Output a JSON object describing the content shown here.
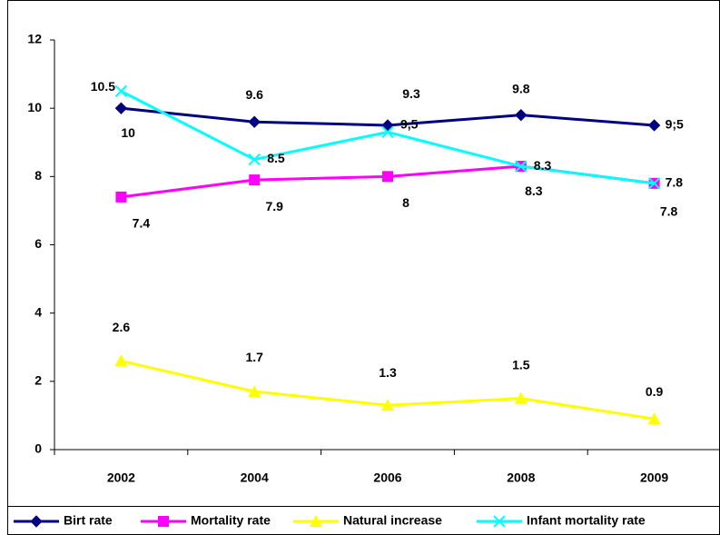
{
  "chart_data": {
    "type": "line",
    "categories": [
      "2002",
      "2004",
      "2006",
      "2008",
      "2009"
    ],
    "series": [
      {
        "name": "Birt rate",
        "color": "#000080",
        "marker": "diamond",
        "values": [
          10,
          9.6,
          9.5,
          9.8,
          9.5
        ],
        "value_labels": [
          "10",
          "9.6",
          "9,5",
          "9.8",
          "9;5"
        ]
      },
      {
        "name": "Mortality rate",
        "color": "#ff00ff",
        "marker": "square",
        "values": [
          7.4,
          7.9,
          8,
          8.3,
          7.8
        ]
      },
      {
        "name": "Natural increase",
        "color": "#ffff00",
        "marker": "triangle",
        "values": [
          2.6,
          1.7,
          1.3,
          1.5,
          0.9
        ]
      },
      {
        "name": "Infant mortality rate",
        "color": "#00ffff",
        "marker": "x",
        "values": [
          10.5,
          8.5,
          9.3,
          8.3,
          7.8
        ]
      }
    ],
    "ylim": [
      0,
      12
    ],
    "yticks": [
      0,
      2,
      4,
      6,
      8,
      10,
      12
    ],
    "grid": false,
    "legend": "bottom"
  }
}
